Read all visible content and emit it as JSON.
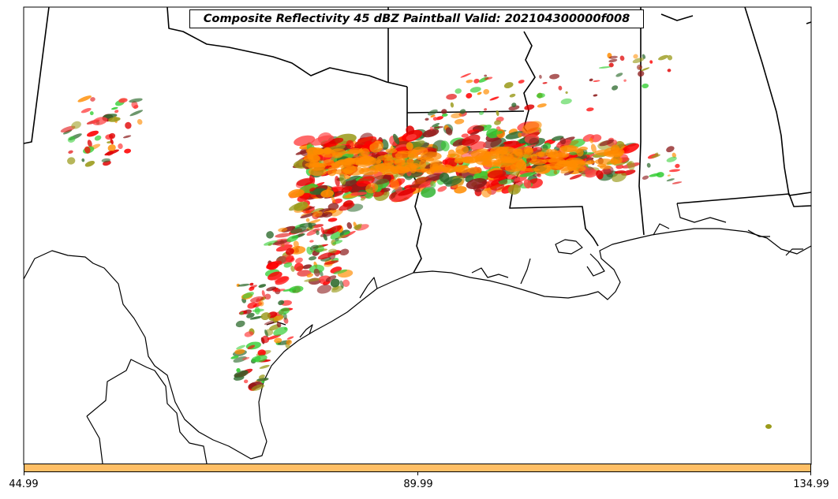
{
  "title": "Composite Reflectivity 45 dBZ Paintball Valid: 202104300000f008",
  "colorbar": {
    "color": "#ffbf66",
    "ticks": [
      "44.99",
      "89.99",
      "134.99"
    ]
  },
  "paintball_colors": [
    "#ff0000",
    "#ff8c00",
    "#32cd32",
    "#8b1a1a",
    "#9a9a1a",
    "#2e6b2e",
    "#ff4040",
    "#e00000"
  ],
  "basemap": {
    "coastline_color": "#000000",
    "background_color": "#ffffff"
  }
}
